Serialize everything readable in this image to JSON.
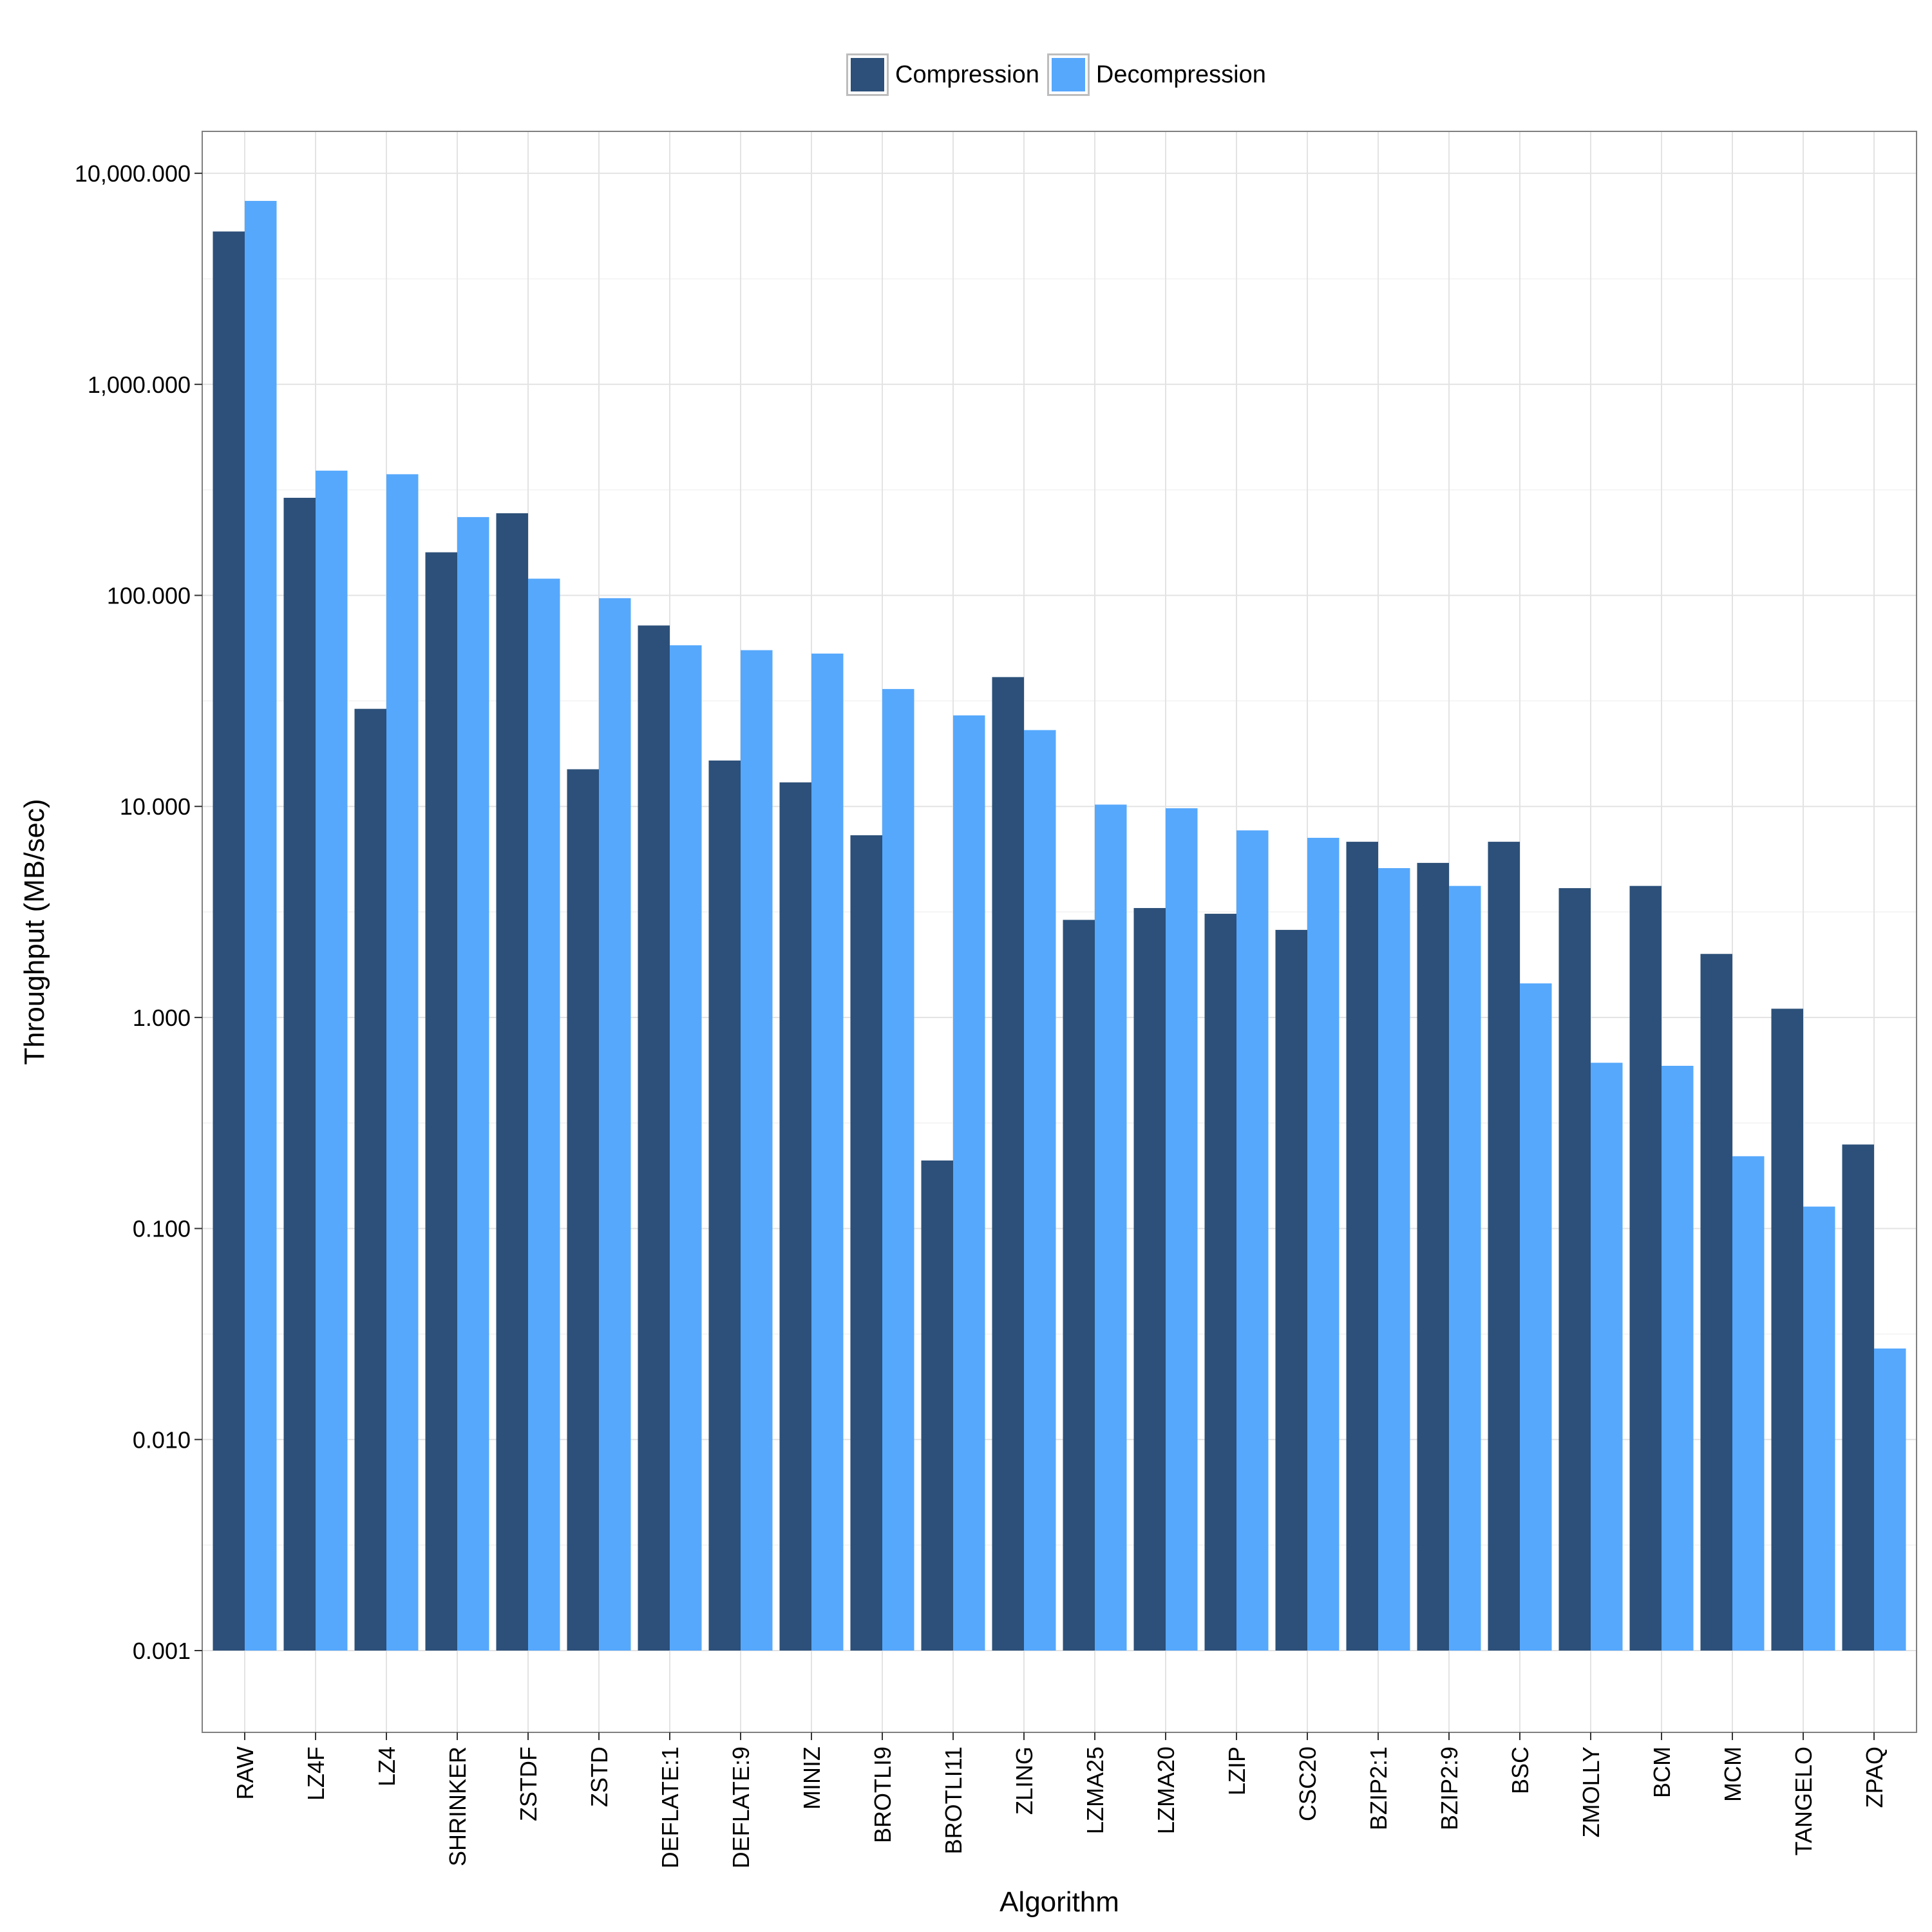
{
  "chart_data": {
    "type": "bar",
    "xlabel": "Algorithm",
    "ylabel": "Throughput (MB/sec)",
    "y_scale": "log10",
    "ylim": [
      0.001,
      10000
    ],
    "yticks": [
      {
        "value": 0.001,
        "label": "0.001"
      },
      {
        "value": 0.01,
        "label": "0.010"
      },
      {
        "value": 0.1,
        "label": "0.100"
      },
      {
        "value": 1,
        "label": "1.000"
      },
      {
        "value": 10,
        "label": "10.000"
      },
      {
        "value": 100,
        "label": "100.000"
      },
      {
        "value": 1000,
        "label": "1,000.000"
      },
      {
        "value": 10000,
        "label": "10,000.000"
      }
    ],
    "grid": true,
    "legend_position": "top",
    "categories": [
      "RAW",
      "LZ4F",
      "LZ4",
      "SHRINKER",
      "ZSTDF",
      "ZSTD",
      "DEFLATE:1",
      "DEFLATE:9",
      "MINIZ",
      "BROTLI9",
      "BROTLI11",
      "ZLING",
      "LZMA25",
      "LZMA20",
      "LZIP",
      "CSC20",
      "BZIP2:1",
      "BZIP2:9",
      "BSC",
      "ZMOLLY",
      "BCM",
      "MCM",
      "TANGELO",
      "ZPAQ"
    ],
    "series": [
      {
        "name": "Compression",
        "color": "#2c5079",
        "values": [
          5300,
          290,
          29,
          160,
          245,
          15,
          72,
          16.5,
          13,
          7.3,
          0.21,
          41,
          2.9,
          3.3,
          3.1,
          2.6,
          6.8,
          5.4,
          6.8,
          4.1,
          4.2,
          2.0,
          1.1,
          0.25
        ]
      },
      {
        "name": "Decompression",
        "color": "#56a8fc",
        "values": [
          7400,
          390,
          375,
          235,
          120,
          97,
          58,
          55,
          53,
          36,
          27,
          23,
          10.2,
          9.8,
          7.7,
          7.1,
          5.1,
          4.2,
          1.45,
          0.61,
          0.59,
          0.22,
          0.127,
          0.027
        ]
      }
    ]
  }
}
